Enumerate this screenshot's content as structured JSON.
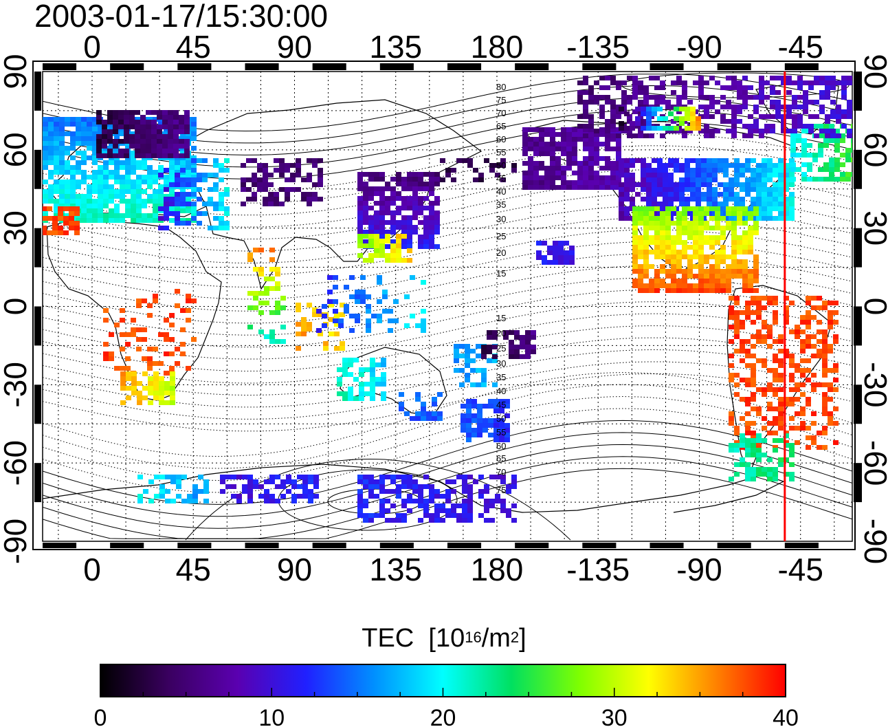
{
  "title": "2003-01-17/15:30:00",
  "map": {
    "top_ticks": [
      "0",
      "45",
      "90",
      "135",
      "180",
      "-135",
      "-90",
      "-45"
    ],
    "bottom_ticks": [
      "0",
      "45",
      "90",
      "135",
      "180",
      "-135",
      "-90",
      "-45"
    ],
    "left_ticks": [
      "90",
      "60",
      "30",
      "0",
      "-30",
      "-60",
      "-90"
    ],
    "right_ticks": [
      "90",
      "60",
      "30",
      "0",
      "-30",
      "-60",
      "-90"
    ],
    "lon_range": [
      -22,
      338
    ],
    "lat_range": [
      -90,
      90
    ],
    "marker_longitude": -52,
    "marker_color": "#ff0000",
    "dip_contour_labels_north": [
      "80",
      "75",
      "70",
      "65",
      "60",
      "55",
      "50",
      "45",
      "40",
      "35",
      "30",
      "25",
      "20",
      "15"
    ],
    "dip_contour_labels_south": [
      "15",
      "20",
      "25",
      "30",
      "35",
      "40",
      "45",
      "50",
      "55",
      "60",
      "65",
      "70",
      "75"
    ],
    "grid": "dotted"
  },
  "colorbar": {
    "title_main": "TEC",
    "title_unit_prefix": "[10",
    "title_exp1": "16",
    "title_mid": "/m",
    "title_exp2": "2",
    "title_suffix": "]",
    "ticks": [
      "0",
      "10",
      "20",
      "30",
      "40"
    ],
    "range": [
      0,
      40
    ],
    "colormap": [
      "#000000",
      "#3a0060",
      "#5a00b0",
      "#2020ff",
      "#0090ff",
      "#00ffff",
      "#00e060",
      "#80ff00",
      "#ffff00",
      "#ff8000",
      "#ff0000"
    ]
  }
}
